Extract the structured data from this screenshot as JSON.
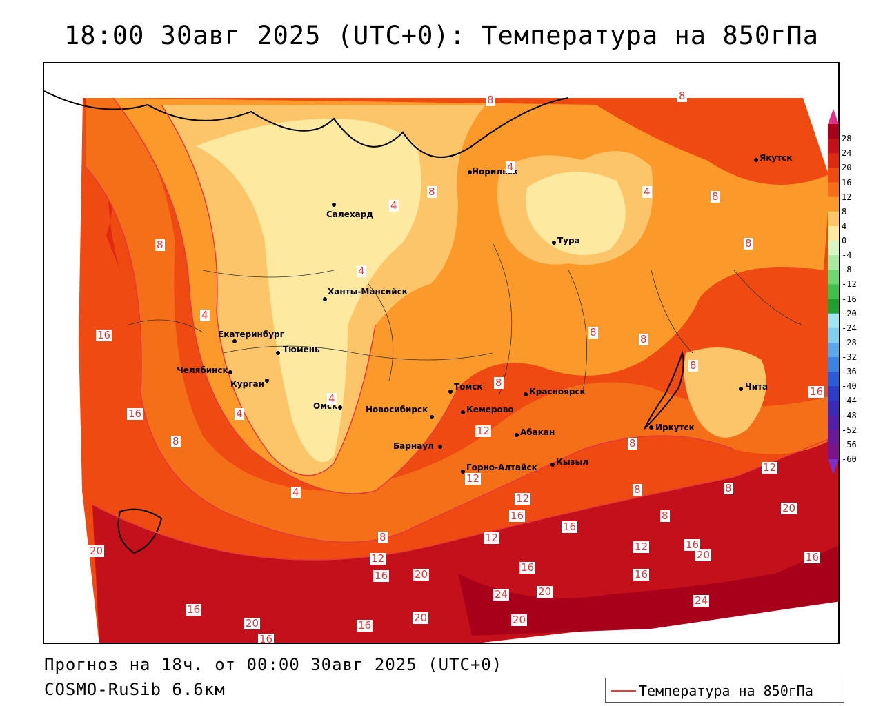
{
  "title": "18:00 30авг 2025 (UTC+0): Температура на 850гПа",
  "footer": {
    "forecast": "Прогноз на 18ч. от 00:00 30авг 2025 (UTC+0)",
    "model": "COSMO-RuSib 6.6км"
  },
  "legend": {
    "label": "Температура на 850гПа",
    "color": "#e43b3b"
  },
  "colorbar": {
    "labels": [
      "28",
      "24",
      "20",
      "16",
      "12",
      "8",
      "4",
      "0",
      "-4",
      "-8",
      "-12",
      "-16",
      "-20",
      "-24",
      "-28",
      "-32",
      "-36",
      "-40",
      "-44",
      "-48",
      "-52",
      "-56",
      "-60"
    ],
    "colors": [
      "#a8001a",
      "#c4101a",
      "#dd2a10",
      "#ee4a12",
      "#f56f18",
      "#fb9a2a",
      "#fdc56a",
      "#fde9a0",
      "#d6f5c0",
      "#a8e8a0",
      "#6ed870",
      "#3ec04a",
      "#1ea030",
      "#9fe6f0",
      "#7fd0f0",
      "#5aa8ec",
      "#3a84e4",
      "#2a5cd8",
      "#2a3cc8",
      "#3a2ab8",
      "#5020a8",
      "#6a1a98",
      "#7a1488"
    ],
    "top_arrow_color": "#e0308a",
    "bottom_arrow_color": "#7a30c8"
  },
  "cities": [
    {
      "name": "Норильск"
    },
    {
      "name": "Якутск"
    },
    {
      "name": "Салехард"
    },
    {
      "name": "Тура"
    },
    {
      "name": "Ханты-Мансийск"
    },
    {
      "name": "Екатеринбург"
    },
    {
      "name": "Тюмень"
    },
    {
      "name": "Челябинск"
    },
    {
      "name": "Курган"
    },
    {
      "name": "Омск"
    },
    {
      "name": "Томск"
    },
    {
      "name": "Красноярск"
    },
    {
      "name": "Новосибирск"
    },
    {
      "name": "Кемерово"
    },
    {
      "name": "Абакан"
    },
    {
      "name": "Барнаул"
    },
    {
      "name": "Горно-Алтайск"
    },
    {
      "name": "Кызыл"
    },
    {
      "name": "Иркутск"
    },
    {
      "name": "Чита"
    }
  ],
  "contour_labels": [
    "8",
    "8",
    "4",
    "4",
    "8",
    "8",
    "8",
    "4",
    "8",
    "8",
    "4",
    "8",
    "16",
    "4",
    "4",
    "4",
    "8",
    "16",
    "8",
    "8",
    "4",
    "8",
    "12",
    "12",
    "16",
    "12",
    "8",
    "8",
    "8",
    "12",
    "8",
    "20",
    "12",
    "16",
    "16",
    "12",
    "16",
    "12",
    "16",
    "20",
    "20",
    "16",
    "20",
    "16",
    "20",
    "24",
    "20",
    "24",
    "16",
    "20",
    "16",
    "20",
    "16",
    "16"
  ]
}
